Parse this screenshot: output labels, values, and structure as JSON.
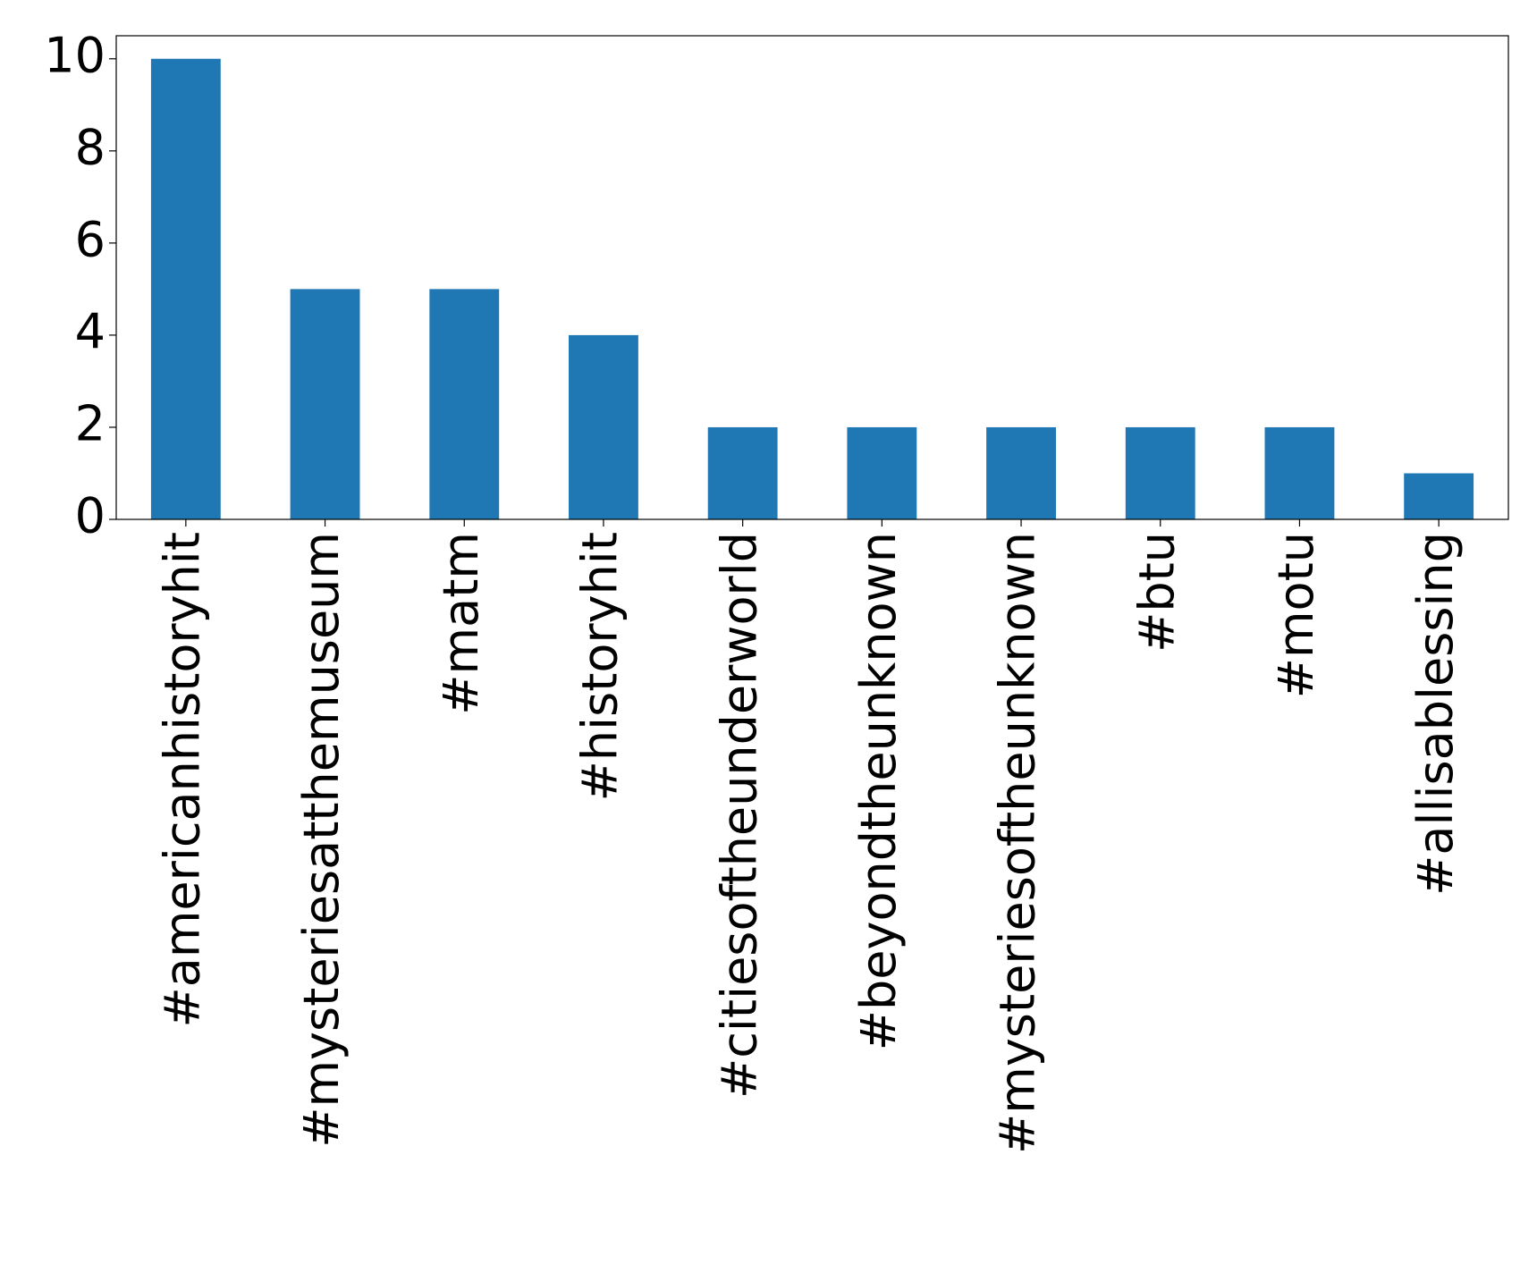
{
  "chart_data": {
    "type": "bar",
    "categories": [
      "#americanhistoryhit",
      "#mysteriesatthemuseum",
      "#matm",
      "#historyhit",
      "#citiesoftheunderworld",
      "#beyondtheunknown",
      "#mysteriesoftheunknown",
      "#btu",
      "#motu",
      "#allisablessing"
    ],
    "values": [
      10,
      5,
      5,
      4,
      2,
      2,
      2,
      2,
      2,
      1
    ],
    "color": "#1f77b4",
    "ylim": [
      0,
      10.5
    ],
    "yticks": [
      0,
      2,
      4,
      6,
      8,
      10
    ],
    "grid": false
  }
}
